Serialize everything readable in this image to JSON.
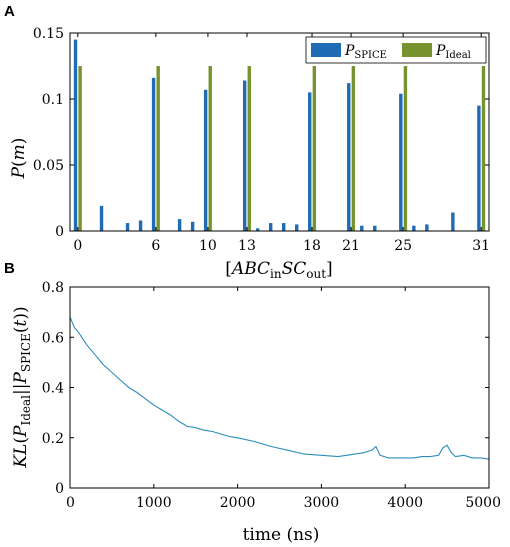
{
  "colors": {
    "spice": "#1f6bb4",
    "ideal": "#76932f",
    "line": "#2b8cbe",
    "axis": "#000000"
  },
  "chart_data": [
    {
      "panel": "A",
      "type": "bar",
      "ylabel": "P(m)",
      "xlabel": "[ABC_in SC_out]",
      "ylim": [
        0,
        0.15
      ],
      "yticks": [
        0,
        0.05,
        0.1,
        0.15
      ],
      "ytick_labels": [
        "0",
        "0.05",
        "0.1",
        "0.15"
      ],
      "xlim": [
        -0.6,
        31.6
      ],
      "xticks": [
        0,
        6,
        10,
        13,
        18,
        21,
        25,
        31
      ],
      "xtick_labels": [
        "0",
        "6",
        "10",
        "13",
        "18",
        "21",
        "25",
        "31"
      ],
      "legend_placement": "top-right",
      "legend": [
        {
          "key": "spice",
          "main": "P",
          "sub": "SPICE"
        },
        {
          "key": "ideal",
          "main": "P",
          "sub": "Ideal"
        }
      ],
      "categories": [
        0,
        1,
        2,
        3,
        4,
        5,
        6,
        7,
        8,
        9,
        10,
        11,
        12,
        13,
        14,
        15,
        16,
        17,
        18,
        19,
        20,
        21,
        22,
        23,
        24,
        25,
        26,
        27,
        28,
        29,
        30,
        31
      ],
      "series": [
        {
          "key": "spice",
          "name": "P_SPICE",
          "values": [
            0.145,
            0.0,
            0.019,
            0.0,
            0.006,
            0.008,
            0.116,
            0.0,
            0.009,
            0.007,
            0.107,
            0.0,
            0.0,
            0.114,
            0.002,
            0.006,
            0.006,
            0.005,
            0.105,
            0.0,
            0.0,
            0.112,
            0.004,
            0.004,
            0.0,
            0.104,
            0.004,
            0.005,
            0.0,
            0.014,
            0.0,
            0.095
          ]
        },
        {
          "key": "ideal",
          "name": "P_Ideal",
          "values": [
            0.125,
            0,
            0,
            0,
            0,
            0,
            0.125,
            0,
            0,
            0,
            0.125,
            0,
            0,
            0.125,
            0,
            0,
            0,
            0,
            0.125,
            0,
            0,
            0.125,
            0,
            0,
            0,
            0.125,
            0,
            0,
            0,
            0,
            0,
            0.125
          ]
        }
      ]
    },
    {
      "panel": "B",
      "type": "line",
      "ylabel": "KL(P_Ideal||P_SPICE(t))",
      "xlabel": "time (ns)",
      "xlim": [
        0,
        5000
      ],
      "ylim": [
        0,
        0.8
      ],
      "xticks": [
        0,
        1000,
        2000,
        3000,
        4000,
        5000
      ],
      "xtick_labels": [
        "0",
        "1000",
        "2000",
        "3000",
        "4000",
        "5000"
      ],
      "yticks": [
        0,
        0.2,
        0.4,
        0.6,
        0.8
      ],
      "ytick_labels": [
        "0",
        "0.2",
        "0.4",
        "0.6",
        "0.8"
      ],
      "x": [
        0,
        50,
        100,
        200,
        300,
        400,
        500,
        600,
        700,
        800,
        900,
        1000,
        1100,
        1200,
        1300,
        1400,
        1500,
        1600,
        1700,
        1800,
        1900,
        2000,
        2200,
        2400,
        2600,
        2800,
        3000,
        3200,
        3400,
        3500,
        3600,
        3650,
        3700,
        3800,
        3900,
        4000,
        4100,
        4200,
        4300,
        4400,
        4450,
        4500,
        4550,
        4600,
        4700,
        4800,
        4900,
        5000
      ],
      "y": [
        0.68,
        0.64,
        0.62,
        0.57,
        0.53,
        0.49,
        0.46,
        0.43,
        0.4,
        0.38,
        0.355,
        0.33,
        0.31,
        0.29,
        0.265,
        0.245,
        0.24,
        0.23,
        0.225,
        0.215,
        0.205,
        0.2,
        0.185,
        0.165,
        0.15,
        0.135,
        0.13,
        0.125,
        0.135,
        0.14,
        0.15,
        0.165,
        0.13,
        0.12,
        0.12,
        0.12,
        0.12,
        0.125,
        0.125,
        0.13,
        0.16,
        0.17,
        0.14,
        0.125,
        0.13,
        0.12,
        0.12,
        0.115
      ]
    }
  ]
}
